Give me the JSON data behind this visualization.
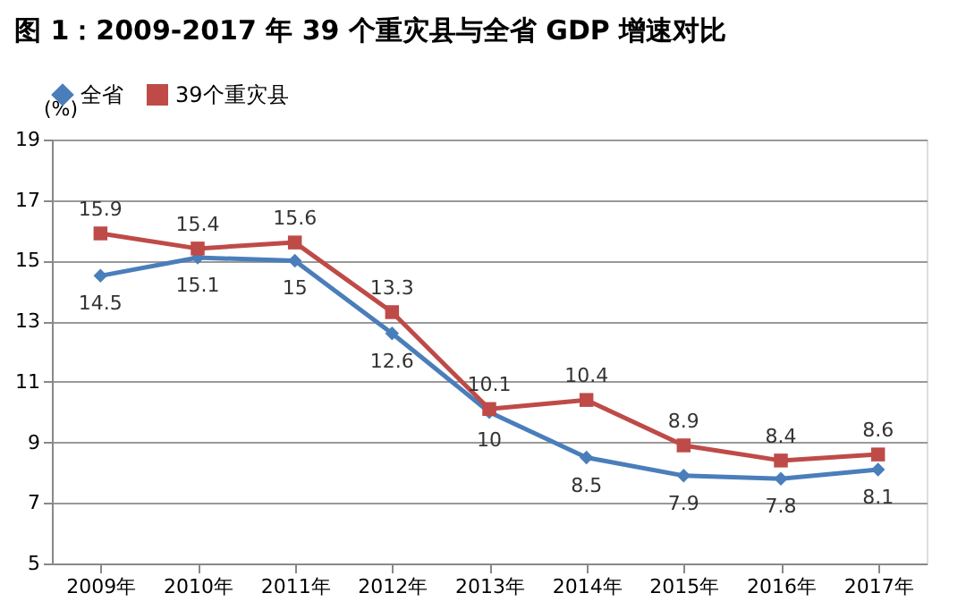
{
  "chart_data": {
    "type": "line",
    "title": "图 1：2009-2017 年 39 个重灾县与全省 GDP 增速对比",
    "ylabel": "(%)",
    "categories": [
      "2009年",
      "2010年",
      "2011年",
      "2012年",
      "2013年",
      "2014年",
      "2015年",
      "2016年",
      "2017年"
    ],
    "series": [
      {
        "name": "全省",
        "color": "#4a7ebb",
        "marker": "diamond",
        "values": [
          14.5,
          15.1,
          15,
          12.6,
          10,
          8.5,
          7.9,
          7.8,
          8.1
        ]
      },
      {
        "name": "39个重灾县",
        "color": "#be4b48",
        "marker": "square",
        "values": [
          15.9,
          15.4,
          15.6,
          13.3,
          10.1,
          10.4,
          8.9,
          8.4,
          8.6
        ]
      }
    ],
    "ylim": [
      5,
      19
    ],
    "yticks": [
      5,
      7,
      9,
      11,
      13,
      15,
      17,
      19
    ],
    "grid": "y",
    "legend": "top",
    "data_labels": true,
    "line_style": "solid"
  }
}
